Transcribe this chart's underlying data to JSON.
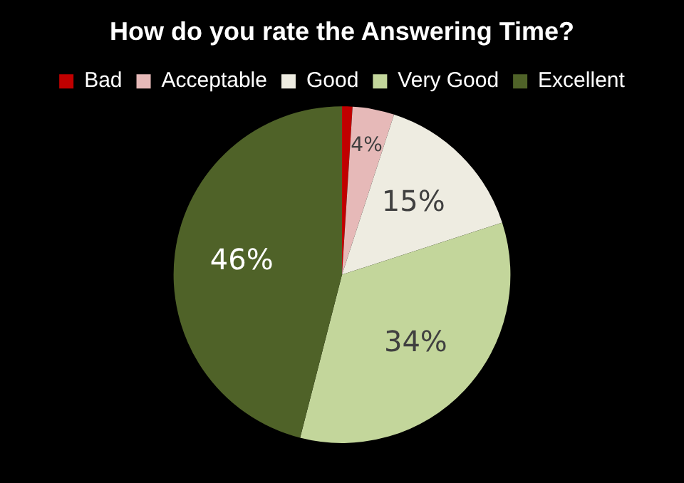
{
  "chart_data": {
    "type": "pie",
    "title": "How do you rate the Answering Time?",
    "categories": [
      "Bad",
      "Acceptable",
      "Good",
      "Very Good",
      "Excellent"
    ],
    "values": [
      1,
      4,
      15,
      34,
      46
    ],
    "colors": [
      "#c00000",
      "#e6b9b8",
      "#eeece1",
      "#c3d69b",
      "#4f6228"
    ],
    "value_labels": [
      null,
      "4%",
      "15%",
      "34%",
      "46%"
    ],
    "legend": "top"
  }
}
